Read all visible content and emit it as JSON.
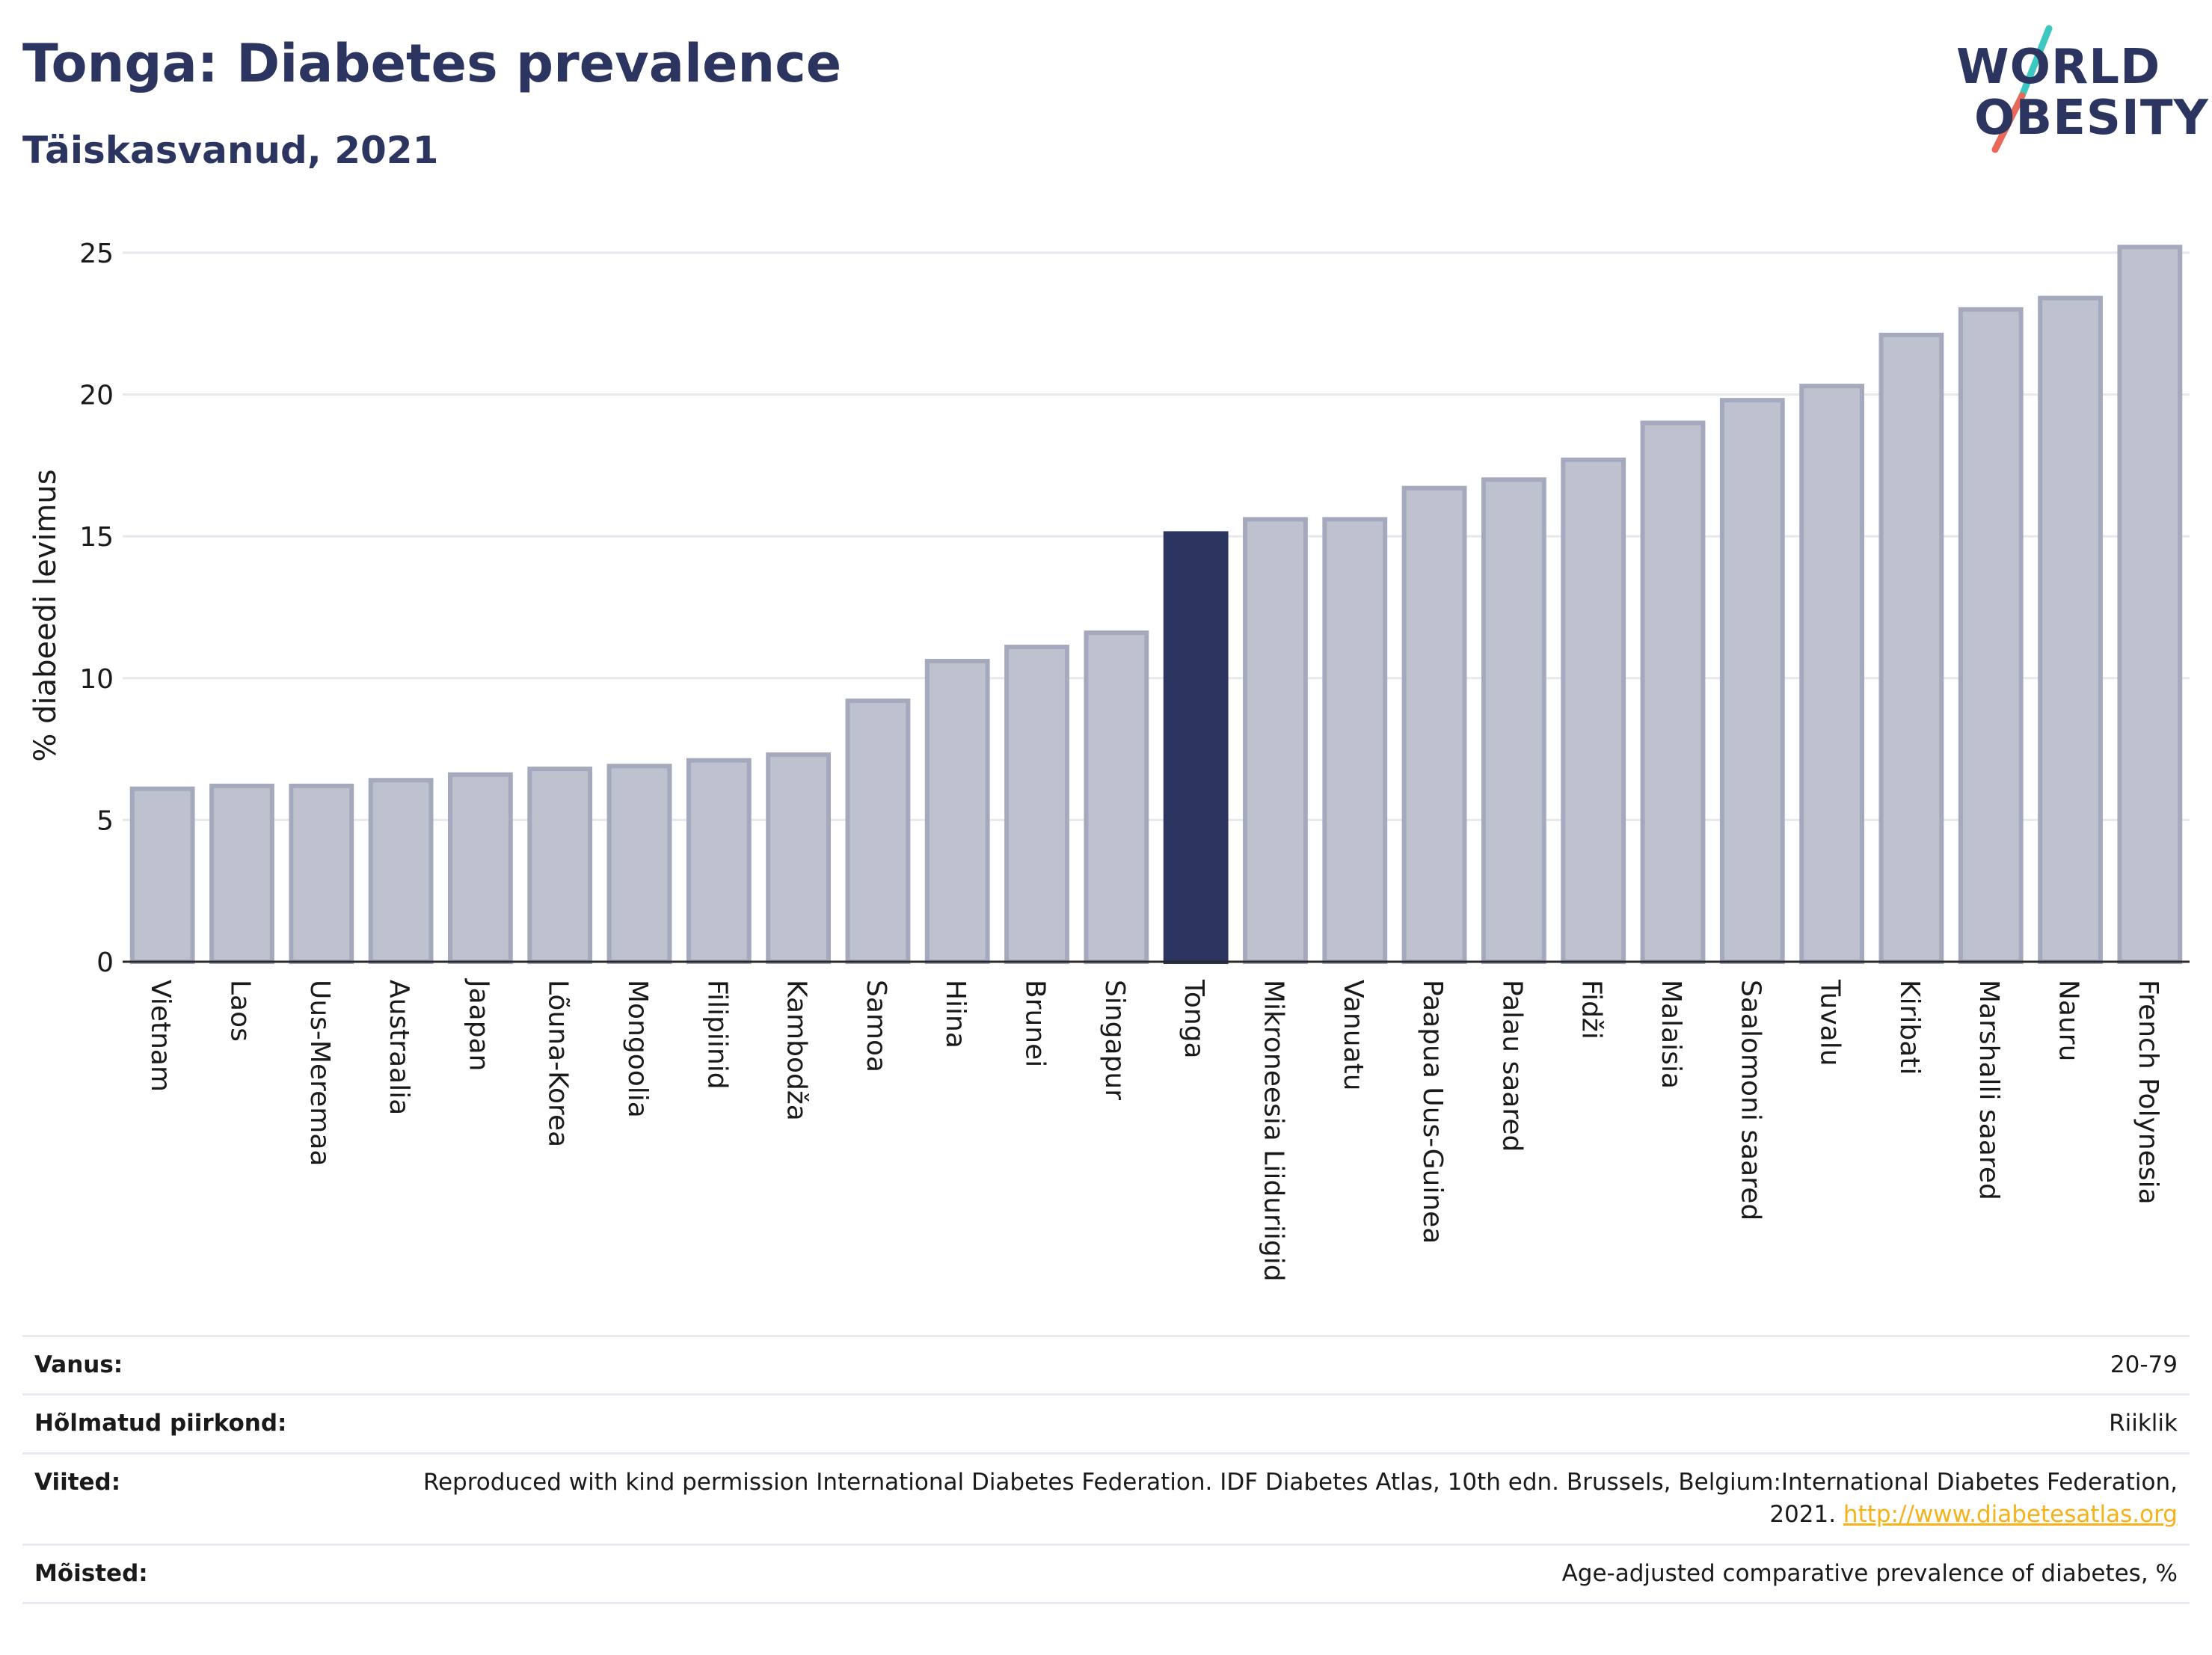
{
  "header": {
    "title": "Tonga: Diabetes prevalence",
    "subtitle": "Täiskasvanud, 2021"
  },
  "logo": {
    "line1": "WORLD",
    "line2": "OBESITY",
    "colors": {
      "text": "#2b3560",
      "slash_top": "#3cc7c0",
      "slash_bottom": "#e8685a"
    }
  },
  "colors": {
    "bar": "#bec2cf",
    "bar_stroke": "#a4a9bd",
    "highlight": "#2b3560",
    "grid": "#e6e8ee",
    "axis": "#2a2a2a"
  },
  "chart_data": {
    "type": "bar",
    "title": "Tonga: Diabetes prevalence",
    "subtitle": "Täiskasvanud, 2021",
    "xlabel": "",
    "ylabel": "% diabeedi levimus",
    "ylim": [
      0,
      26
    ],
    "yticks": [
      0,
      5,
      10,
      15,
      20,
      25
    ],
    "grid": true,
    "highlight": "Tonga",
    "categories": [
      "Vietnam",
      "Laos",
      "Uus-Meremaa",
      "Austraalia",
      "Jaapan",
      "Lõuna-Korea",
      "Mongoolia",
      "Filipiinid",
      "Kambodža",
      "Samoa",
      "Hiina",
      "Brunei",
      "Singapur",
      "Tonga",
      "Mikroneesia Liiduriigid",
      "Vanuatu",
      "Paapua Uus-Guinea",
      "Palau saared",
      "Fidži",
      "Malaisia",
      "Saalomoni saared",
      "Tuvalu",
      "Kiribati",
      "Marshalli saared",
      "Nauru",
      "French Polynesia"
    ],
    "values": [
      6.1,
      6.2,
      6.2,
      6.4,
      6.6,
      6.8,
      6.9,
      7.1,
      7.3,
      9.2,
      10.6,
      11.1,
      11.6,
      15.1,
      15.6,
      15.6,
      16.7,
      17.0,
      17.7,
      19.0,
      19.8,
      20.3,
      22.1,
      23.0,
      23.4,
      25.2
    ]
  },
  "info": [
    {
      "key": "Vanus:",
      "value": "20-79"
    },
    {
      "key": "Hõlmatud piirkond:",
      "value": "Riiklik"
    },
    {
      "key": "Viited:",
      "value": "Reproduced with kind permission International Diabetes Federation.  IDF Diabetes Atlas, 10th edn. Brussels, Belgium:International Diabetes Federation, 2021. ",
      "link": "http://www.diabetesatlas.org"
    },
    {
      "key": "Mõisted:",
      "value": "Age-adjusted comparative prevalence of diabetes, %"
    }
  ]
}
